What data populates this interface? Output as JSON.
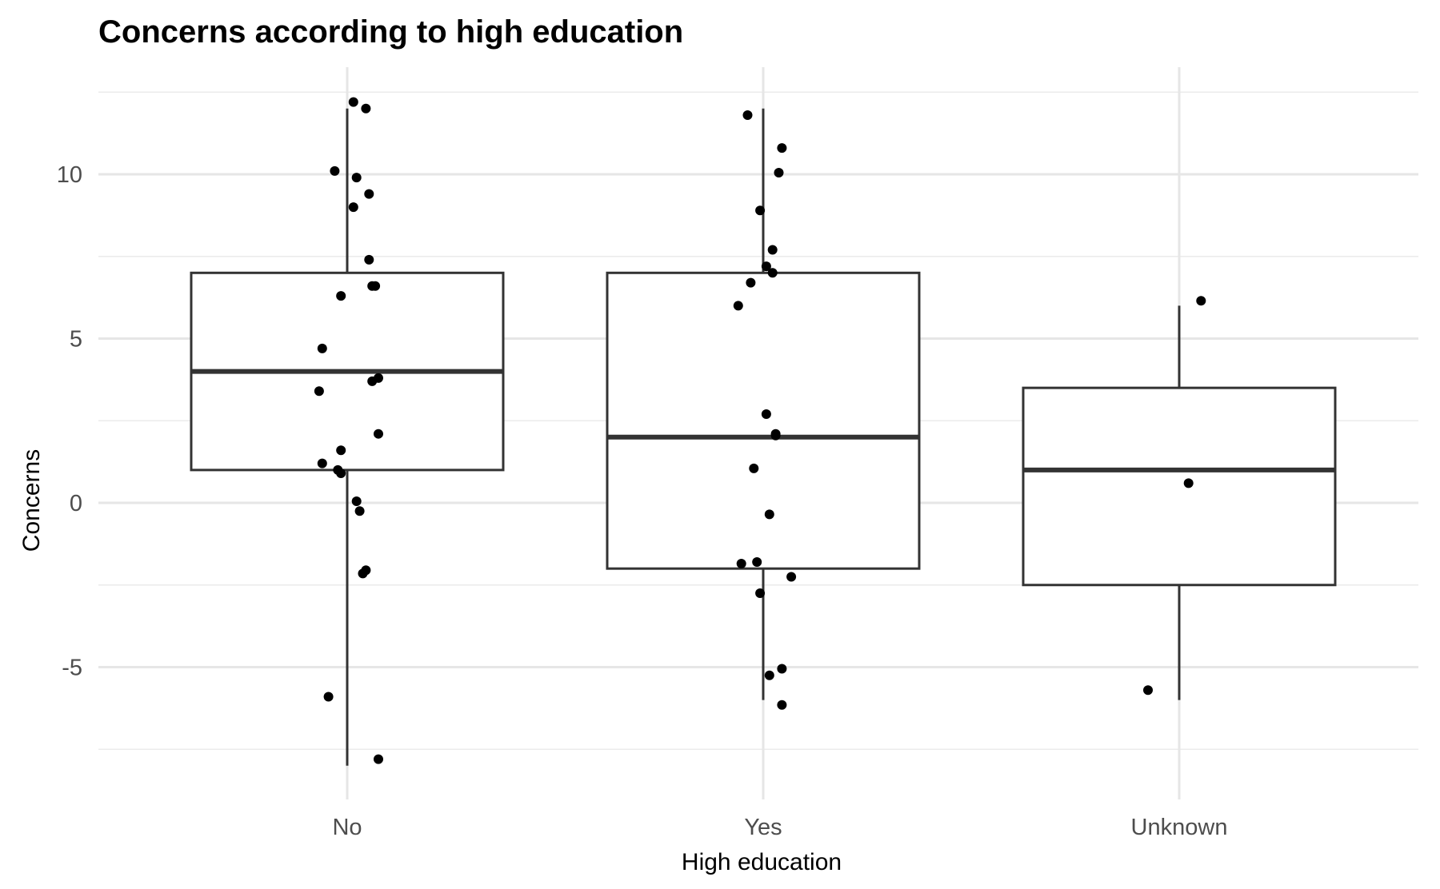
{
  "chart_data": {
    "type": "boxplot",
    "title": "Concerns according to high education",
    "xlabel": "High education",
    "ylabel": "Concerns",
    "categories": [
      "No",
      "Yes",
      "Unknown"
    ],
    "ylim": [
      -9,
      13
    ],
    "yticks": [
      -5,
      0,
      5,
      10
    ],
    "ytick_labels": [
      "-5",
      "0",
      "5",
      "10"
    ],
    "grid": true,
    "boxes": [
      {
        "category": "No",
        "whisker_low": -8,
        "q1": 1,
        "median": 4,
        "q3": 7,
        "whisker_high": 12
      },
      {
        "category": "Yes",
        "whisker_low": -6,
        "q1": -2,
        "median": 2,
        "q3": 7,
        "whisker_high": 12
      },
      {
        "category": "Unknown",
        "whisker_low": -6,
        "q1": -2.5,
        "median": 1,
        "q3": 3.5,
        "whisker_high": 6
      }
    ],
    "points": [
      {
        "category": "No",
        "jitter": 0.02,
        "y": 12.2
      },
      {
        "category": "No",
        "jitter": 0.06,
        "y": 12.0
      },
      {
        "category": "No",
        "jitter": -0.04,
        "y": 10.1
      },
      {
        "category": "No",
        "jitter": 0.03,
        "y": 9.9
      },
      {
        "category": "No",
        "jitter": 0.07,
        "y": 9.4
      },
      {
        "category": "No",
        "jitter": 0.02,
        "y": 9.0
      },
      {
        "category": "No",
        "jitter": 0.07,
        "y": 7.4
      },
      {
        "category": "No",
        "jitter": 0.08,
        "y": 6.6
      },
      {
        "category": "No",
        "jitter": 0.09,
        "y": 6.6
      },
      {
        "category": "No",
        "jitter": -0.02,
        "y": 6.3
      },
      {
        "category": "No",
        "jitter": -0.08,
        "y": 4.7
      },
      {
        "category": "No",
        "jitter": 0.1,
        "y": 3.8
      },
      {
        "category": "No",
        "jitter": 0.08,
        "y": 3.7
      },
      {
        "category": "No",
        "jitter": -0.09,
        "y": 3.4
      },
      {
        "category": "No",
        "jitter": 0.1,
        "y": 2.1
      },
      {
        "category": "No",
        "jitter": -0.02,
        "y": 1.6
      },
      {
        "category": "No",
        "jitter": -0.08,
        "y": 1.2
      },
      {
        "category": "No",
        "jitter": -0.03,
        "y": 1.0
      },
      {
        "category": "No",
        "jitter": -0.02,
        "y": 0.9
      },
      {
        "category": "No",
        "jitter": 0.03,
        "y": 0.05
      },
      {
        "category": "No",
        "jitter": 0.04,
        "y": -0.25
      },
      {
        "category": "No",
        "jitter": 0.06,
        "y": -2.05
      },
      {
        "category": "No",
        "jitter": 0.05,
        "y": -2.15
      },
      {
        "category": "No",
        "jitter": -0.06,
        "y": -5.9
      },
      {
        "category": "No",
        "jitter": 0.1,
        "y": -7.8
      },
      {
        "category": "Yes",
        "jitter": -0.05,
        "y": 11.8
      },
      {
        "category": "Yes",
        "jitter": 0.06,
        "y": 10.8
      },
      {
        "category": "Yes",
        "jitter": 0.05,
        "y": 10.05
      },
      {
        "category": "Yes",
        "jitter": -0.01,
        "y": 8.9
      },
      {
        "category": "Yes",
        "jitter": 0.03,
        "y": 7.7
      },
      {
        "category": "Yes",
        "jitter": 0.01,
        "y": 7.2
      },
      {
        "category": "Yes",
        "jitter": 0.03,
        "y": 7.0
      },
      {
        "category": "Yes",
        "jitter": -0.04,
        "y": 6.7
      },
      {
        "category": "Yes",
        "jitter": -0.08,
        "y": 6.0
      },
      {
        "category": "Yes",
        "jitter": 0.01,
        "y": 2.7
      },
      {
        "category": "Yes",
        "jitter": 0.04,
        "y": 2.1
      },
      {
        "category": "Yes",
        "jitter": 0.04,
        "y": 2.05
      },
      {
        "category": "Yes",
        "jitter": -0.03,
        "y": 1.05
      },
      {
        "category": "Yes",
        "jitter": 0.02,
        "y": -0.35
      },
      {
        "category": "Yes",
        "jitter": -0.07,
        "y": -1.85
      },
      {
        "category": "Yes",
        "jitter": -0.02,
        "y": -1.8
      },
      {
        "category": "Yes",
        "jitter": 0.09,
        "y": -2.25
      },
      {
        "category": "Yes",
        "jitter": -0.01,
        "y": -2.75
      },
      {
        "category": "Yes",
        "jitter": 0.06,
        "y": -5.05
      },
      {
        "category": "Yes",
        "jitter": 0.02,
        "y": -5.25
      },
      {
        "category": "Yes",
        "jitter": 0.06,
        "y": -6.15
      },
      {
        "category": "Unknown",
        "jitter": 0.07,
        "y": 6.15
      },
      {
        "category": "Unknown",
        "jitter": 0.03,
        "y": 0.6
      },
      {
        "category": "Unknown",
        "jitter": -0.1,
        "y": -5.7
      }
    ]
  }
}
